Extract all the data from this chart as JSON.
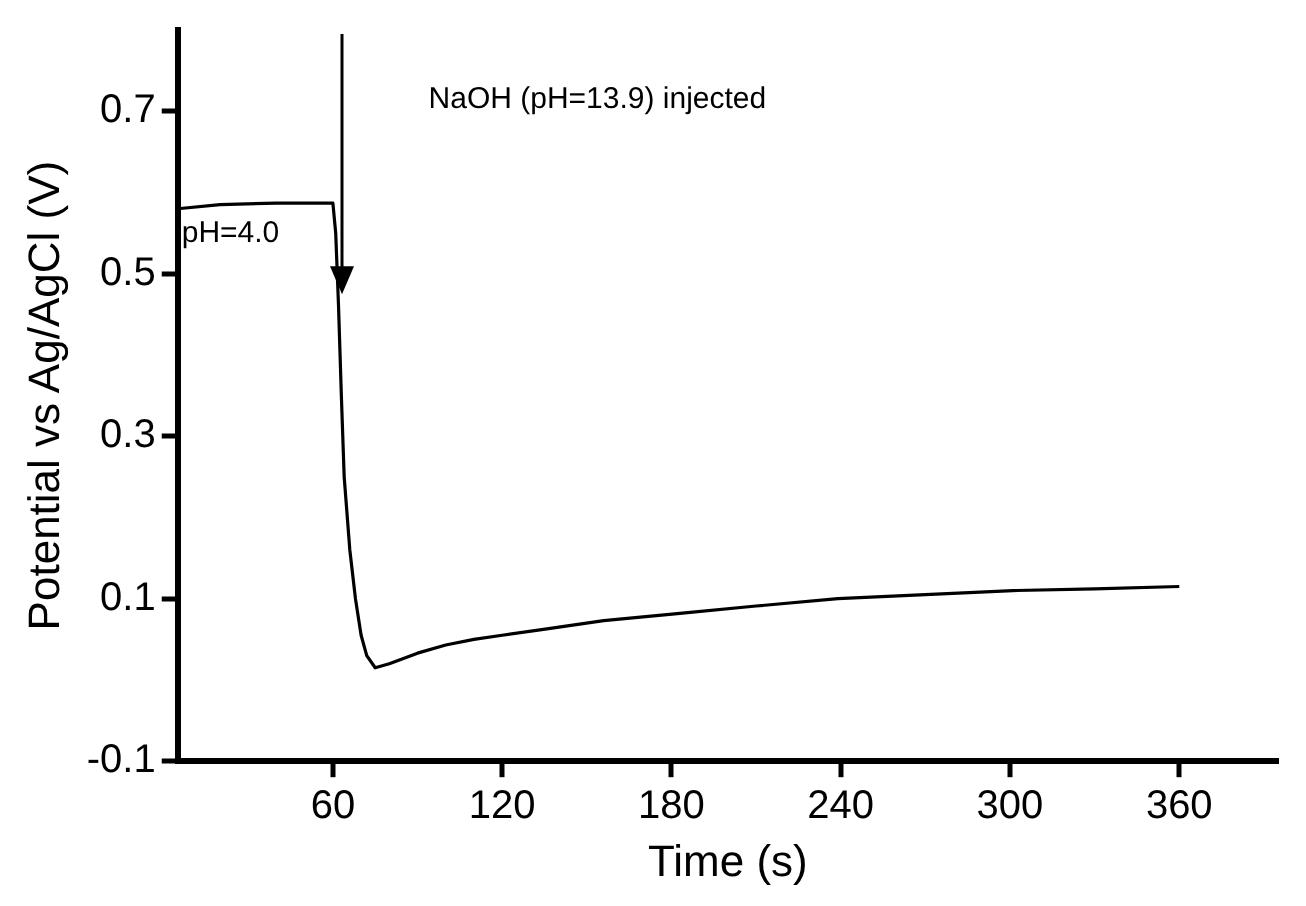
{
  "chart_data": {
    "type": "line",
    "xlabel": "Time (s)",
    "ylabel": "Potential vs Ag/AgCl (V)",
    "x": [
      5,
      20,
      40,
      58,
      60,
      61,
      62,
      63,
      64,
      66,
      68,
      70,
      72,
      75,
      80,
      90,
      100,
      110,
      120,
      134,
      156,
      183,
      210,
      239,
      270,
      301,
      330,
      360
    ],
    "series": [
      {
        "color": "#000000",
        "values": [
          0.58,
          0.585,
          0.587,
          0.587,
          0.587,
          0.55,
          0.46,
          0.35,
          0.25,
          0.16,
          0.1,
          0.055,
          0.03,
          0.015,
          0.02,
          0.033,
          0.043,
          0.05,
          0.055,
          0.062,
          0.073,
          0.082,
          0.091,
          0.1,
          0.105,
          0.11,
          0.112,
          0.115
        ]
      }
    ],
    "xlim": [
      5,
      395
    ],
    "xticks": [
      60,
      120,
      180,
      240,
      300,
      360
    ],
    "ylim": [
      -0.1,
      0.8
    ],
    "yticks": [
      -0.1,
      0.1,
      0.3,
      0.5,
      0.7
    ],
    "grid": false,
    "legend": false,
    "marker": "none",
    "line_style": "solid",
    "annotations": [
      "NaOH (pH=13.9) injected",
      {
        "text": "pH=4.0",
        "x": 5,
        "y": 0.587
      }
    ]
  }
}
